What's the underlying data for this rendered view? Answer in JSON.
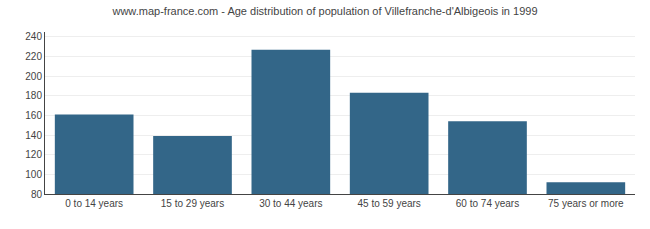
{
  "chart_data": {
    "type": "bar",
    "title": "www.map-france.com - Age distribution of population of Villefranche-d'Albigeois in 1999",
    "categories": [
      "0 to 14 years",
      "15 to 29 years",
      "30 to 44 years",
      "45 to 59 years",
      "60 to 74 years",
      "75 years or more"
    ],
    "values": [
      161,
      139,
      227,
      183,
      154,
      92
    ],
    "color": "#336688",
    "ylim": [
      80,
      245
    ],
    "yticks": [
      80,
      100,
      120,
      140,
      160,
      180,
      200,
      220,
      240
    ],
    "grid": true
  }
}
